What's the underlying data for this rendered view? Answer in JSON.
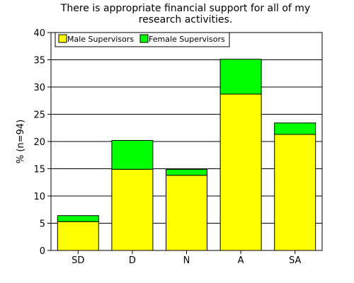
{
  "chart_data": {
    "type": "bar",
    "stacked": true,
    "title_lines": [
      "There is appropriate financial support for all of my",
      "research activities."
    ],
    "ylabel": "% (n=94)",
    "xlabel": "",
    "categories": [
      "SD",
      "D",
      "N",
      "A",
      "SA"
    ],
    "series": [
      {
        "name": "Male Supervisors",
        "values": [
          5.3,
          14.9,
          13.8,
          28.7,
          21.3
        ],
        "color": "#ffff00"
      },
      {
        "name": "Female Supervisors",
        "values": [
          1.1,
          5.3,
          1.1,
          6.4,
          2.1
        ],
        "color": "#00ff00"
      }
    ],
    "ylim": [
      0,
      40
    ],
    "yticks": [
      0,
      5,
      10,
      15,
      20,
      25,
      30,
      35,
      40
    ],
    "grid": true,
    "legend_position": "top-left"
  }
}
